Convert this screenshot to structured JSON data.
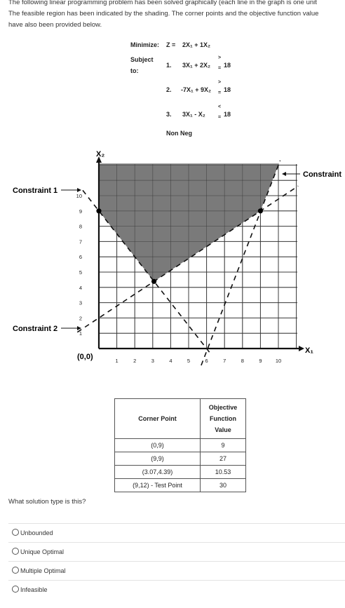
{
  "intro": {
    "line1": "The following linear programming problem has been solved graphically (each line in the graph is one unit",
    "line2": "The feasible region has been indicated by the shading. The corner points and the objective function value",
    "line3": "have also been provided below."
  },
  "model": {
    "objective_label": "Minimize:",
    "objective_lhs": "Z  =",
    "objective_expr": "2X₁ + 1X₂",
    "subject_line1": "Subject",
    "subject_line2": "to:",
    "constraints": [
      {
        "num": "1.",
        "expr": "3X₁ + 2X₂",
        "sign_top": ">",
        "sign_bottom": "=",
        "rhs": "18"
      },
      {
        "num": "2.",
        "expr": "-7X₁ + 9X₂",
        "sign_top": ">",
        "sign_bottom": "=",
        "rhs": "18"
      },
      {
        "num": "3.",
        "expr": "3X₁ -  X₂",
        "sign_top": "<",
        "sign_bottom": "=",
        "rhs": "18"
      }
    ],
    "nonneg": "Non Neg"
  },
  "graph": {
    "x_axis_label": "X₁",
    "y_axis_label": "X₂",
    "origin_label": "(0,0)",
    "x_ticks": [
      "1",
      "2",
      "3",
      "4",
      "5",
      "6",
      "7",
      "8",
      "9",
      "10"
    ],
    "y_ticks": [
      "1",
      "2",
      "3",
      "4",
      "5",
      "6",
      "7",
      "8",
      "9",
      "10"
    ],
    "constraint1_label": "Constraint 1",
    "constraint2_label": "Constraint 2",
    "constraint3_label": "Constraint",
    "corner_points": [
      [
        0,
        9
      ],
      [
        9,
        9
      ],
      [
        3.07,
        4.39
      ]
    ],
    "shading_color": "#7a7a7a"
  },
  "table": {
    "col1_header": "Corner Point",
    "col2_header": [
      "Objective",
      "Function",
      "Value"
    ],
    "rows": [
      {
        "point": "(0,9)",
        "value": "9"
      },
      {
        "point": "(9,9)",
        "value": "27"
      },
      {
        "point": "(3.07,4.39)",
        "value": "10.53"
      },
      {
        "point": "(9,12) - Test Point",
        "value": "30"
      }
    ]
  },
  "question": "What solution type is this?",
  "options": [
    "Unbounded",
    "Unique Optimal",
    "Multiple Optimal",
    "Infeasible"
  ]
}
